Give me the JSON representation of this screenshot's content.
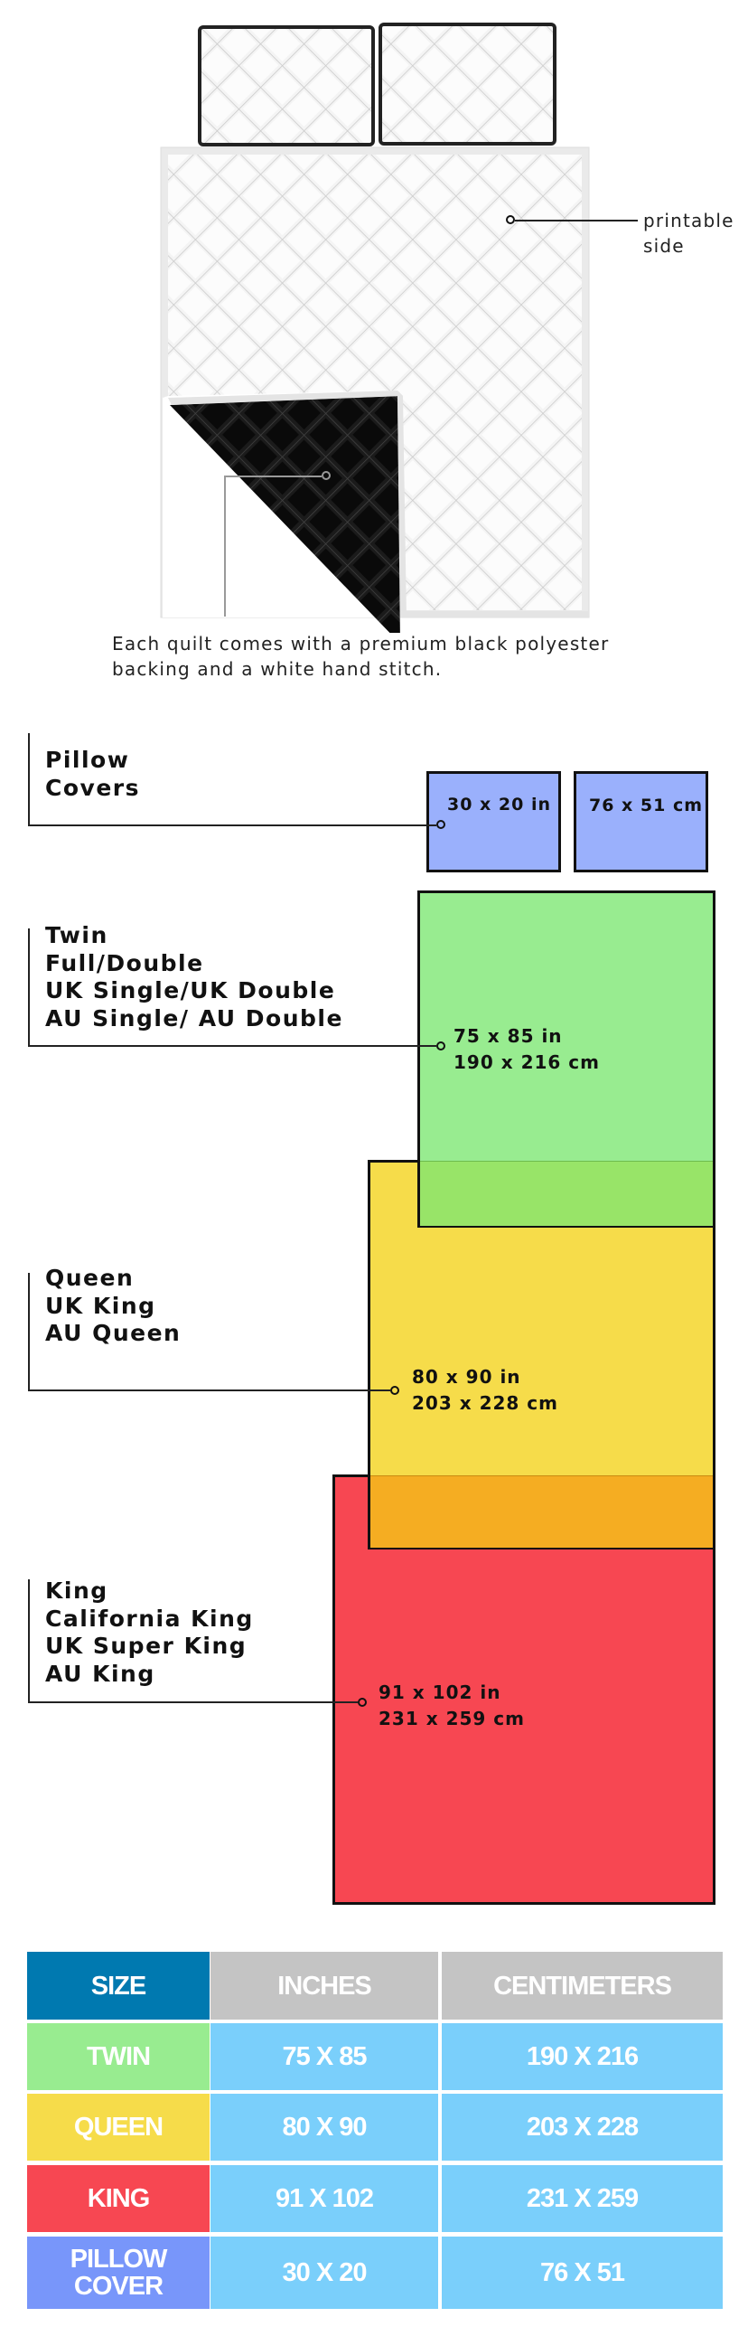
{
  "illustration": {
    "printable_label": [
      "printable",
      "side"
    ],
    "caption": [
      "Each quilt comes with a premium black polyester",
      "backing and a white hand stitch."
    ]
  },
  "sizes": [
    {
      "name_lines": [
        "Pillow",
        "Covers"
      ],
      "inches": "30 x 20 in",
      "cm": "76 x 51 cm",
      "color": "#9ab0fc"
    },
    {
      "name_lines": [
        "Twin",
        "Full/Double",
        "UK Single/UK Double",
        "AU Single/ AU Double"
      ],
      "inches": "75 x 85 in",
      "cm": "190 x 216 cm",
      "color": "#98ec90"
    },
    {
      "name_lines": [
        "Queen",
        "UK King",
        "AU Queen"
      ],
      "inches": "80 x 90 in",
      "cm": "203 x 228 cm",
      "color": "#f6dc4a"
    },
    {
      "name_lines": [
        "King",
        "California King",
        "UK Super King",
        "AU King"
      ],
      "inches": "91 x 102 in",
      "cm": "231 x 259 cm",
      "color": "#f74752"
    }
  ],
  "overlap_colors": {
    "twin_queen": "#98e468",
    "queen_king": "#f5ad22"
  },
  "table": {
    "headers": [
      "SIZE",
      "INCHES",
      "CENTIMETERS"
    ],
    "header_colors": {
      "size": "#0079b0",
      "other": "#c4c4c4"
    },
    "value_color": "#7acffb",
    "rows": [
      {
        "size": "TWIN",
        "inches": "75 X 85",
        "cm": "190 X 216",
        "color": "#98ec90"
      },
      {
        "size": "QUEEN",
        "inches": "80 X 90",
        "cm": "203 X 228",
        "color": "#f6dc4a"
      },
      {
        "size": "KING",
        "inches": "91 X 102",
        "cm": "231 X 259",
        "color": "#f74752"
      },
      {
        "size_lines": [
          "PILLOW",
          "COVER"
        ],
        "inches": "30 X 20",
        "cm": "76 X 51",
        "color": "#7896fa"
      }
    ]
  }
}
